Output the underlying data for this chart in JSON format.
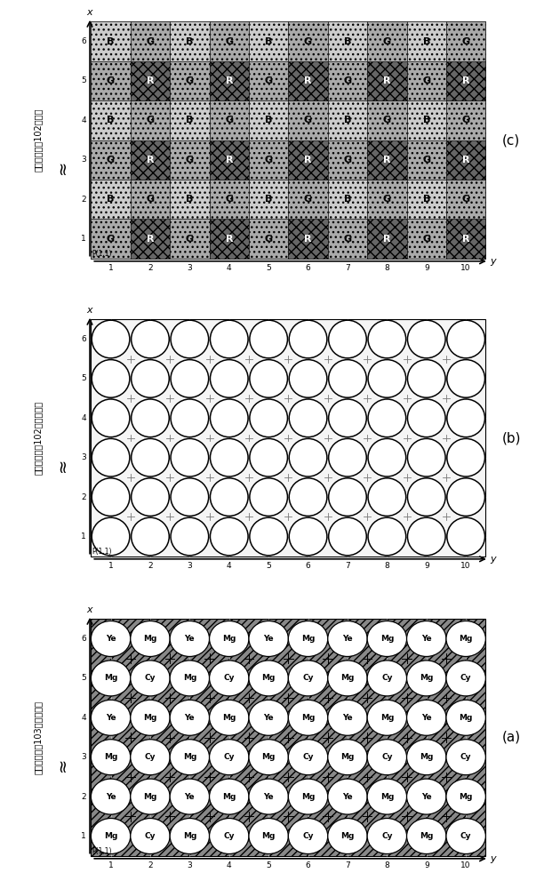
{
  "panel_c": {
    "title": "第一攝像元件102的輸出",
    "label": "(c)",
    "pattern": [
      [
        "G",
        "R",
        "G",
        "R",
        "G",
        "R",
        "G",
        "R",
        "G",
        "R"
      ],
      [
        "B",
        "G",
        "B",
        "G",
        "B",
        "G",
        "B",
        "G",
        "B",
        "G"
      ],
      [
        "G",
        "R",
        "G",
        "R",
        "G",
        "R",
        "G",
        "R",
        "G",
        "R"
      ],
      [
        "B",
        "G",
        "B",
        "G",
        "B",
        "G",
        "B",
        "G",
        "B",
        "G"
      ],
      [
        "G",
        "R",
        "G",
        "R",
        "G",
        "R",
        "G",
        "R",
        "G",
        "R"
      ],
      [
        "B",
        "G",
        "B",
        "G",
        "B",
        "G",
        "B",
        "G",
        "B",
        "G"
      ]
    ],
    "nx": 10,
    "ny": 6
  },
  "panel_b": {
    "title": "第一攝像元件102的像素配置",
    "label": "(b)",
    "nx": 10,
    "ny": 6
  },
  "panel_a": {
    "title": "第二攝像元件103的像素配置",
    "label": "(a)",
    "pattern": [
      [
        "Mg",
        "Cy",
        "Mg",
        "Cy",
        "Mg",
        "Cy",
        "Mg",
        "Cy",
        "Mg",
        "Cy"
      ],
      [
        "Ye",
        "Mg",
        "Ye",
        "Mg",
        "Ye",
        "Mg",
        "Ye",
        "Mg",
        "Ye",
        "Mg"
      ],
      [
        "Mg",
        "Cy",
        "Mg",
        "Cy",
        "Mg",
        "Cy",
        "Mg",
        "Cy",
        "Mg",
        "Cy"
      ],
      [
        "Ye",
        "Mg",
        "Ye",
        "Mg",
        "Ye",
        "Mg",
        "Ye",
        "Mg",
        "Ye",
        "Mg"
      ],
      [
        "Mg",
        "Cy",
        "Mg",
        "Cy",
        "Mg",
        "Cy",
        "Mg",
        "Cy",
        "Mg",
        "Cy"
      ],
      [
        "Ye",
        "Mg",
        "Ye",
        "Mg",
        "Ye",
        "Mg",
        "Ye",
        "Mg",
        "Ye",
        "Mg"
      ]
    ],
    "nx": 10,
    "ny": 6
  },
  "bg_color": "#ffffff",
  "panel_c_colors": {
    "R": {
      "face": "#666666",
      "hatch": "xxx",
      "text": "white"
    },
    "G": {
      "face": "#aaaaaa",
      "hatch": "...",
      "text": "black"
    },
    "B": {
      "face": "#cccccc",
      "hatch": "...",
      "text": "black"
    }
  }
}
